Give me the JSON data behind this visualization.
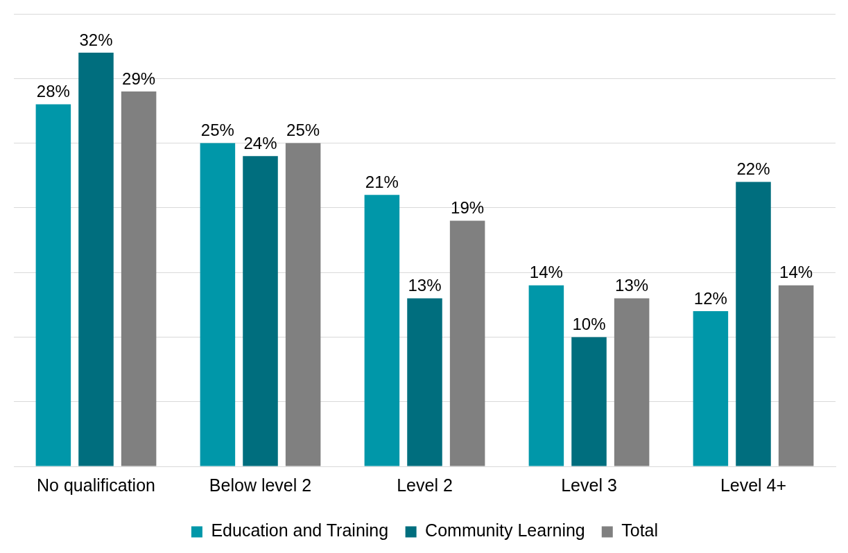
{
  "chart_data": {
    "type": "bar",
    "categories": [
      "No qualification",
      "Below level 2",
      "Level 2",
      "Level 3",
      "Level 4+"
    ],
    "series": [
      {
        "name": "Education and Training",
        "color": "#0097a9",
        "values": [
          28,
          25,
          21,
          14,
          12
        ],
        "value_labels": [
          "28%",
          "25%",
          "21%",
          "14%",
          "12%"
        ]
      },
      {
        "name": "Community Learning",
        "color": "#006e7e",
        "values": [
          32,
          24,
          13,
          10,
          22
        ],
        "value_labels": [
          "32%",
          "24%",
          "13%",
          "10%",
          "22%"
        ]
      },
      {
        "name": "Total",
        "color": "#808080",
        "values": [
          29,
          25,
          19,
          13,
          14
        ],
        "value_labels": [
          "29%",
          "25%",
          "19%",
          "13%",
          "14%"
        ]
      }
    ],
    "ylim": [
      0,
      35
    ],
    "yticks": [
      {
        "value": 0,
        "label": null
      },
      {
        "value": 5,
        "label": null
      },
      {
        "value": 10,
        "label": null
      },
      {
        "value": 15,
        "label": null
      },
      {
        "value": 20,
        "label": null
      },
      {
        "value": 25,
        "label": null
      },
      {
        "value": 30,
        "label": null
      },
      {
        "value": 35,
        "label": null
      }
    ],
    "grid": "y",
    "legend": "bottom",
    "tick_labels": "x"
  }
}
